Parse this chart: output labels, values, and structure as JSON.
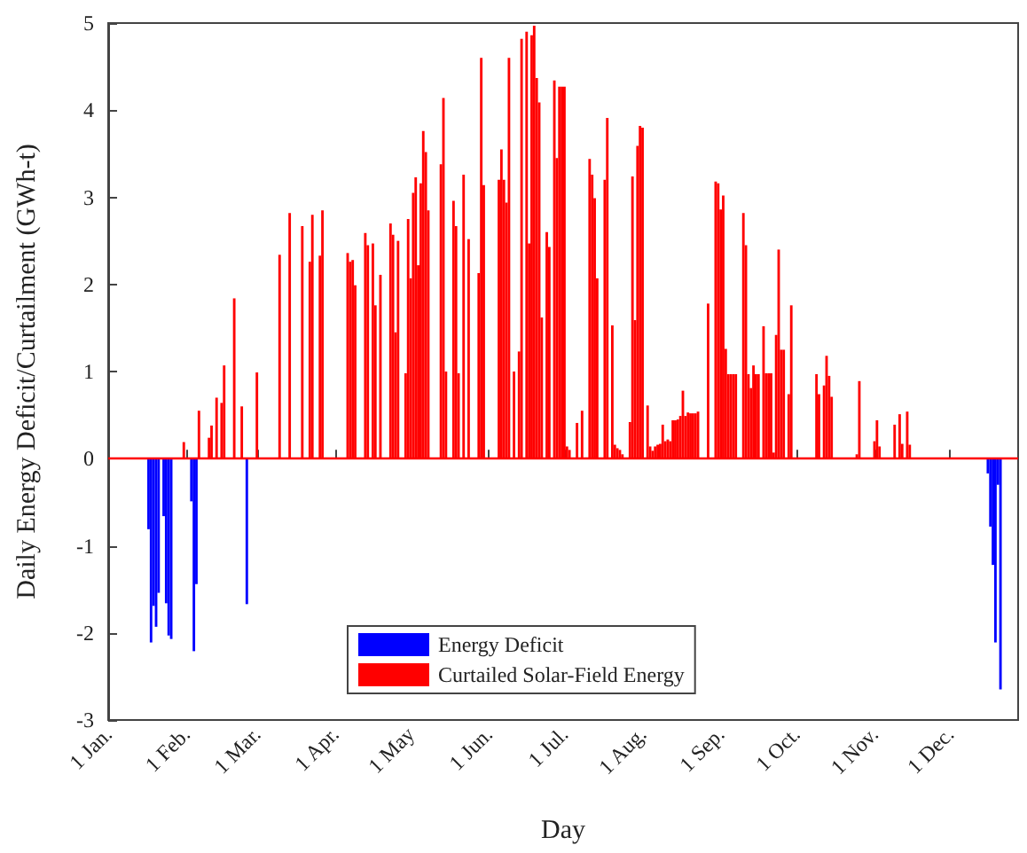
{
  "chart_data": {
    "type": "bar",
    "xlabel": "Day",
    "ylabel": "Daily Energy Deficit/Curtailment (GWh-t)",
    "xlim": [
      "--01-01",
      "--12-28"
    ],
    "xticks": [
      {
        "value": "--01-01",
        "label": "1 Jan."
      },
      {
        "value": "--02-01",
        "label": "1 Feb."
      },
      {
        "value": "--03-01",
        "label": "1 Mar."
      },
      {
        "value": "--04-01",
        "label": "1 Apr."
      },
      {
        "value": "--05-01",
        "label": "1 May"
      },
      {
        "value": "--06-01",
        "label": "1 Jun."
      },
      {
        "value": "--07-01",
        "label": "1 Jul."
      },
      {
        "value": "--08-01",
        "label": "1 Aug."
      },
      {
        "value": "--09-01",
        "label": "1 Sep."
      },
      {
        "value": "--10-01",
        "label": "1 Oct."
      },
      {
        "value": "--11-01",
        "label": "1 Nov."
      },
      {
        "value": "--12-01",
        "label": "1 Dec."
      }
    ],
    "ylim": [
      -3,
      5
    ],
    "yticks": [
      -3,
      -2,
      -1,
      0,
      1,
      2,
      3,
      4,
      5
    ],
    "legend": "bottom",
    "ref_lines": [
      {
        "axis": "y",
        "value": 0,
        "color": "#ff0000"
      }
    ],
    "series": [
      {
        "name": "Energy Deficit",
        "color": "#0000ff",
        "x": [
          "--01-17",
          "--01-18",
          "--01-19",
          "--01-20",
          "--01-21",
          "--01-23",
          "--01-24",
          "--01-25",
          "--01-26",
          "--02-03",
          "--02-04",
          "--02-05",
          "--02-25",
          "--12-16",
          "--12-17",
          "--12-18",
          "--12-19",
          "--12-20",
          "--12-21"
        ],
        "values": [
          -0.81,
          -2.11,
          -1.69,
          -1.93,
          -1.54,
          -0.66,
          -1.66,
          -2.03,
          -2.07,
          -0.49,
          -2.21,
          -1.44,
          -1.67,
          -0.17,
          -0.78,
          -1.22,
          -2.11,
          -0.3,
          -2.65
        ]
      },
      {
        "name": "Curtailed Solar-Field Energy",
        "color": "#ff0000",
        "x": [
          "--01-31",
          "--02-06",
          "--02-10",
          "--02-11",
          "--02-13",
          "--02-15",
          "--02-16",
          "--02-20",
          "--02-23",
          "--03-01",
          "--03-10",
          "--03-14",
          "--03-19",
          "--03-22",
          "--03-23",
          "--03-26",
          "--03-27",
          "--04-06",
          "--04-07",
          "--04-08",
          "--04-09",
          "--04-13",
          "--04-14",
          "--04-16",
          "--04-17",
          "--04-19",
          "--04-23",
          "--04-24",
          "--04-25",
          "--04-26",
          "--04-29",
          "--04-30",
          "--05-01",
          "--05-02",
          "--05-03",
          "--05-04",
          "--05-05",
          "--05-06",
          "--05-07",
          "--05-08",
          "--05-13",
          "--05-14",
          "--05-15",
          "--05-18",
          "--05-19",
          "--05-20",
          "--05-22",
          "--05-24",
          "--05-28",
          "--05-29",
          "--05-30",
          "--06-05",
          "--06-06",
          "--06-07",
          "--06-08",
          "--06-09",
          "--06-11",
          "--06-13",
          "--06-14",
          "--06-16",
          "--06-17",
          "--06-18",
          "--06-19",
          "--06-20",
          "--06-21",
          "--06-22",
          "--06-24",
          "--06-25",
          "--06-27",
          "--06-28",
          "--06-29",
          "--06-30",
          "--07-01",
          "--07-02",
          "--07-03",
          "--07-06",
          "--07-08",
          "--07-11",
          "--07-12",
          "--07-13",
          "--07-14",
          "--07-17",
          "--07-18",
          "--07-20",
          "--07-21",
          "--07-22",
          "--07-23",
          "--07-24",
          "--07-27",
          "--07-28",
          "--07-29",
          "--07-30",
          "--07-31",
          "--08-01",
          "--08-03",
          "--08-04",
          "--08-05",
          "--08-06",
          "--08-07",
          "--08-08",
          "--08-09",
          "--08-10",
          "--08-11",
          "--08-12",
          "--08-13",
          "--08-14",
          "--08-15",
          "--08-16",
          "--08-17",
          "--08-18",
          "--08-19",
          "--08-20",
          "--08-21",
          "--08-22",
          "--08-23",
          "--08-27",
          "--08-30",
          "--08-31",
          "--09-01",
          "--09-02",
          "--09-03",
          "--09-04",
          "--09-05",
          "--09-06",
          "--09-07",
          "--09-10",
          "--09-11",
          "--09-12",
          "--09-13",
          "--09-14",
          "--09-15",
          "--09-16",
          "--09-18",
          "--09-19",
          "--09-20",
          "--09-21",
          "--09-22",
          "--09-23",
          "--09-24",
          "--09-25",
          "--09-26",
          "--09-28",
          "--09-29",
          "--10-09",
          "--10-10",
          "--10-12",
          "--10-13",
          "--10-14",
          "--10-15",
          "--10-25",
          "--10-26",
          "--11-01",
          "--11-02",
          "--11-03",
          "--11-09",
          "--11-11",
          "--11-12",
          "--11-14",
          "--11-15"
        ],
        "values": [
          0.19,
          0.55,
          0.24,
          0.38,
          0.7,
          0.64,
          1.07,
          1.84,
          0.6,
          0.99,
          2.34,
          2.82,
          2.67,
          2.26,
          2.8,
          2.33,
          2.85,
          2.36,
          2.26,
          2.28,
          1.99,
          2.59,
          2.45,
          2.47,
          1.76,
          2.11,
          2.7,
          2.57,
          1.45,
          2.5,
          0.98,
          2.75,
          2.07,
          3.05,
          3.23,
          2.22,
          3.16,
          3.76,
          3.52,
          2.85,
          3.38,
          4.14,
          1.0,
          2.96,
          2.67,
          0.98,
          3.26,
          2.52,
          2.13,
          4.6,
          3.14,
          3.2,
          3.55,
          3.2,
          2.94,
          4.6,
          1.0,
          1.23,
          4.82,
          4.9,
          2.47,
          4.86,
          4.97,
          4.37,
          4.09,
          1.62,
          2.6,
          2.43,
          4.34,
          3.45,
          4.27,
          4.27,
          4.27,
          0.14,
          0.1,
          0.41,
          0.55,
          3.44,
          3.26,
          2.99,
          2.07,
          3.2,
          3.91,
          1.53,
          0.16,
          0.12,
          0.1,
          0.05,
          0.42,
          3.24,
          1.59,
          3.59,
          3.82,
          3.8,
          0.61,
          0.14,
          0.09,
          0.14,
          0.16,
          0.17,
          0.39,
          0.2,
          0.22,
          0.2,
          0.44,
          0.44,
          0.45,
          0.49,
          0.78,
          0.49,
          0.53,
          0.52,
          0.52,
          0.52,
          0.54,
          1.78,
          3.18,
          3.16,
          2.86,
          3.02,
          1.26,
          0.97,
          0.97,
          0.97,
          0.97,
          2.82,
          2.45,
          0.97,
          0.81,
          1.07,
          0.97,
          0.97,
          1.52,
          0.98,
          0.98,
          0.98,
          0.07,
          1.42,
          2.4,
          1.25,
          1.25,
          0.74,
          1.76,
          0.97,
          0.74,
          0.84,
          1.18,
          0.95,
          0.71,
          0.05,
          0.89,
          0.2,
          0.44,
          0.14,
          0.39,
          0.51,
          0.17,
          0.54,
          0.16
        ]
      }
    ]
  }
}
